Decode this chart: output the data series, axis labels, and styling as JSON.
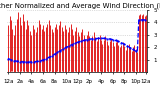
{
  "title": "Milwaukee Weather Normalized and Average Wind Direction (Last 24 Hours)",
  "background_color": "#ffffff",
  "grid_color": "#bbbbbb",
  "bar_color": "#dd0000",
  "line_color": "#0000ff",
  "n_points": 96,
  "ylim": [
    0,
    5
  ],
  "ytick_vals": [
    1,
    2,
    3,
    4,
    5
  ],
  "ytick_labs": [
    "1",
    "2",
    "3",
    "4",
    "5"
  ],
  "title_fontsize": 5.0,
  "tick_fontsize": 4.0,
  "bar_bottoms": [
    0.05,
    0.02,
    0.1,
    0.08,
    0.05,
    0.03,
    0.08,
    0.06,
    0.04,
    0.1,
    0.07,
    0.05,
    0.09,
    0.06,
    0.04,
    0.08,
    0.05,
    0.03,
    0.07,
    0.05,
    0.08,
    0.06,
    0.04,
    0.09,
    0.06,
    0.04,
    0.08,
    0.05,
    0.03,
    0.07,
    0.04,
    0.06,
    0.05,
    0.03,
    0.08,
    0.05,
    0.04,
    0.07,
    0.05,
    0.03,
    0.06,
    0.04,
    0.08,
    0.05,
    0.06,
    0.04,
    0.07,
    0.05,
    0.03,
    0.06,
    0.04,
    0.07,
    0.05,
    0.03,
    0.06,
    0.04,
    0.08,
    0.05,
    0.03,
    0.07,
    0.04,
    0.06,
    0.04,
    0.07,
    0.05,
    0.03,
    0.06,
    0.04,
    0.07,
    0.05,
    0.03,
    0.06,
    0.04,
    0.08,
    0.05,
    0.03,
    0.07,
    0.04,
    0.06,
    0.04,
    0.07,
    0.05,
    0.03,
    0.06,
    0.04,
    0.08,
    0.05,
    0.03,
    0.07,
    0.04,
    0.06,
    0.05,
    0.04,
    0.06,
    0.04,
    0.05
  ],
  "bar_tops": [
    3.8,
    4.5,
    4.2,
    3.5,
    3.0,
    3.8,
    4.3,
    4.8,
    4.4,
    3.8,
    4.7,
    4.1,
    3.5,
    4.2,
    3.8,
    3.3,
    3.0,
    3.8,
    3.5,
    3.2,
    3.6,
    4.2,
    3.9,
    3.5,
    3.8,
    3.3,
    3.6,
    3.9,
    4.2,
    3.8,
    3.5,
    3.2,
    3.6,
    3.9,
    3.5,
    3.8,
    4.1,
    3.6,
    3.3,
    3.8,
    3.5,
    3.2,
    3.6,
    3.9,
    3.5,
    3.0,
    3.3,
    3.6,
    3.2,
    2.9,
    3.2,
    3.5,
    3.0,
    2.7,
    3.0,
    3.3,
    2.9,
    2.6,
    2.9,
    3.2,
    2.8,
    2.5,
    2.8,
    3.0,
    2.6,
    2.3,
    2.6,
    2.9,
    2.5,
    2.2,
    2.5,
    2.7,
    2.4,
    2.1,
    2.4,
    2.6,
    2.2,
    2.0,
    2.2,
    2.4,
    2.1,
    1.8,
    2.1,
    2.3,
    2.0,
    1.7,
    2.0,
    2.2,
    1.9,
    1.6,
    4.6,
    4.7,
    4.6,
    4.7,
    4.5,
    4.6
  ],
  "line_values": [
    1.1,
    1.05,
    1.0,
    0.97,
    0.94,
    0.91,
    0.89,
    0.88,
    0.86,
    0.85,
    0.84,
    0.83,
    0.83,
    0.82,
    0.82,
    0.82,
    0.83,
    0.83,
    0.84,
    0.85,
    0.87,
    0.89,
    0.92,
    0.95,
    0.99,
    1.03,
    1.08,
    1.13,
    1.19,
    1.25,
    1.31,
    1.38,
    1.45,
    1.52,
    1.59,
    1.66,
    1.73,
    1.8,
    1.87,
    1.93,
    1.99,
    2.05,
    2.11,
    2.17,
    2.22,
    2.27,
    2.32,
    2.37,
    2.41,
    2.45,
    2.49,
    2.52,
    2.55,
    2.58,
    2.61,
    2.63,
    2.65,
    2.67,
    2.68,
    2.69,
    2.7,
    2.71,
    2.71,
    2.72,
    2.72,
    2.72,
    2.72,
    2.71,
    2.7,
    2.69,
    2.67,
    2.65,
    2.62,
    2.59,
    2.55,
    2.51,
    2.47,
    2.42,
    2.37,
    2.31,
    2.25,
    2.18,
    2.11,
    2.04,
    1.97,
    1.9,
    1.83,
    1.76,
    1.69,
    1.62,
    4.2,
    4.2,
    4.2,
    4.2,
    4.2,
    4.2
  ],
  "xtick_positions": [
    0,
    8,
    16,
    24,
    32,
    40,
    48,
    56,
    64,
    72,
    80,
    88,
    95
  ],
  "xtick_labels": [
    "12a",
    "2a",
    "4a",
    "6a",
    "8a",
    "10a",
    "12p",
    "2p",
    "4p",
    "6p",
    "8p",
    "10p",
    "12a"
  ]
}
